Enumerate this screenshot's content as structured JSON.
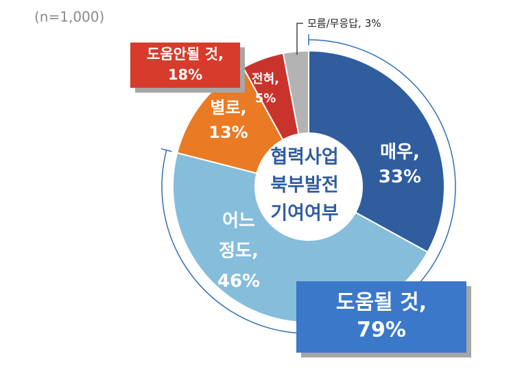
{
  "chart_data": {
    "type": "donut",
    "note": "(n=1,000)",
    "center_label": [
      "협력사업",
      "북부발전",
      "기여여부"
    ],
    "categories": [
      "매우,",
      "어느 정도,",
      "별로,",
      "전혀,",
      "모름/무응답,"
    ],
    "values": [
      33,
      46,
      13,
      5,
      3
    ],
    "value_labels": [
      "33%",
      "46%",
      "13%",
      "5%",
      "3%"
    ],
    "colors": [
      "#2f5d9e",
      "#86bddb",
      "#ea7a23",
      "#c9332c",
      "#b3b3b3"
    ],
    "groups": [
      {
        "label": "도움될 것,",
        "value": 79,
        "value_label": "79%",
        "color": "#3b78c9"
      },
      {
        "label": "도움안될 것,",
        "value": 18,
        "value_label": "18%",
        "color": "#d63b2b"
      }
    ]
  }
}
